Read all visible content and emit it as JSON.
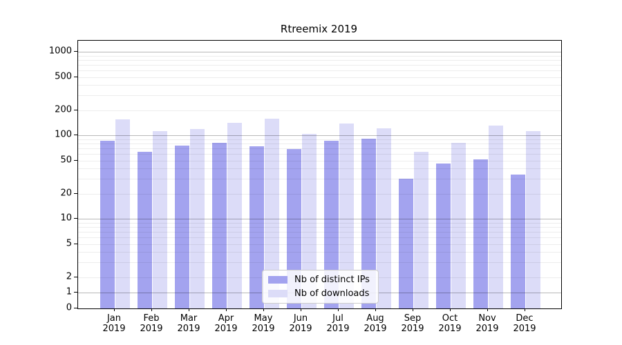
{
  "figure": {
    "title": "Rtreemix 2019"
  },
  "chart_data": {
    "type": "bar",
    "title": "Rtreemix 2019",
    "months": [
      "Jan",
      "Feb",
      "Mar",
      "Apr",
      "May",
      "Jun",
      "Jul",
      "Aug",
      "Sep",
      "Oct",
      "Nov",
      "Dec"
    ],
    "year": "2019",
    "categories": [
      "Jan 2019",
      "Feb 2019",
      "Mar 2019",
      "Apr 2019",
      "May 2019",
      "Jun 2019",
      "Jul 2019",
      "Aug 2019",
      "Sep 2019",
      "Oct 2019",
      "Nov 2019",
      "Dec 2019"
    ],
    "series": [
      {
        "name": "Nb of distinct IPs",
        "color": "#a3a3ef",
        "values": [
          86,
          64,
          75,
          82,
          74,
          68,
          86,
          92,
          30,
          46,
          52,
          34
        ]
      },
      {
        "name": "Nb of downloads",
        "color": "#dcdcf8",
        "values": [
          155,
          113,
          119,
          142,
          157,
          104,
          138,
          121,
          64,
          81,
          131,
          112
        ]
      }
    ],
    "xlabel": "",
    "ylabel": "",
    "yscale": "log (linear below 2, includes 0)",
    "y_ticks": [
      1000,
      500,
      200,
      100,
      50,
      20,
      10,
      5,
      2,
      1,
      0
    ],
    "ylim": [
      0,
      1280
    ],
    "grid": true,
    "legend_position": "lower center",
    "colors": {
      "major_gridline": "#b8b8b8",
      "minor_gridline": "#ececec",
      "frame": "#000000"
    }
  }
}
